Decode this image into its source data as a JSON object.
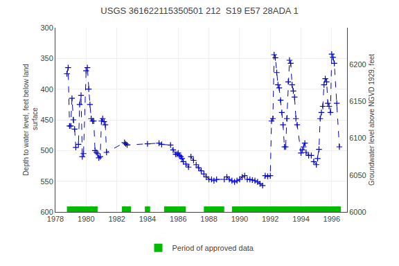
{
  "chart_data": {
    "type": "line",
    "title": "USGS 361622115350501 212  S19 E57 28ADA 1",
    "ylabel": "Depth to water level, feet below land\n surface",
    "y2label": "Groundwater level above NGVD 1929, feet",
    "x": [
      1978.75,
      1978.83,
      1978.92,
      1979.0,
      1979.08,
      1979.17,
      1979.25,
      1979.33,
      1979.5,
      1979.58,
      1979.67,
      1979.75,
      1979.83,
      1980.0,
      1980.08,
      1980.17,
      1980.25,
      1980.33,
      1980.42,
      1980.5,
      1980.58,
      1980.67,
      1980.75,
      1980.83,
      1980.92,
      1981.0,
      1981.08,
      1981.17,
      1981.25,
      1981.33,
      1982.5,
      1982.58,
      1982.67,
      1984.0,
      1984.75,
      1984.92,
      1985.5,
      1985.67,
      1985.83,
      1985.92,
      1986.0,
      1986.08,
      1986.17,
      1986.25,
      1986.33,
      1986.5,
      1986.67,
      1986.83,
      1987.0,
      1987.17,
      1987.33,
      1987.5,
      1987.67,
      1987.83,
      1988.0,
      1988.17,
      1988.33,
      1988.5,
      1989.0,
      1989.17,
      1989.33,
      1989.5,
      1989.67,
      1989.83,
      1990.0,
      1990.17,
      1990.33,
      1990.5,
      1990.67,
      1990.83,
      1991.0,
      1991.17,
      1991.33,
      1991.5,
      1991.67,
      1991.83,
      1992.0,
      1992.08,
      1992.17,
      1992.25,
      1992.33,
      1992.42,
      1992.5,
      1992.58,
      1992.67,
      1992.75,
      1992.83,
      1992.92,
      1993.0,
      1993.08,
      1993.17,
      1993.25,
      1993.33,
      1993.42,
      1993.5,
      1993.58,
      1993.67,
      1993.75,
      1994.0,
      1994.08,
      1994.17,
      1994.25,
      1994.33,
      1994.5,
      1994.67,
      1994.83,
      1995.0,
      1995.08,
      1995.17,
      1995.25,
      1995.33,
      1995.42,
      1995.5,
      1995.58,
      1995.67,
      1995.75,
      1995.83,
      1995.92,
      1996.0,
      1996.08,
      1996.17,
      1996.33,
      1996.5
    ],
    "series": [
      {
        "type": "line",
        "color": "#0000cc",
        "line_style": "dashed",
        "marker": "plus",
        "values": [
          375,
          365,
          460,
          460,
          415,
          450,
          465,
          495,
          490,
          425,
          410,
          510,
          505,
          370,
          365,
          400,
          425,
          448,
          452,
          452,
          500,
          503,
          505,
          512,
          510,
          452,
          448,
          453,
          458,
          503,
          487,
          489,
          491,
          489,
          488,
          490,
          491,
          499,
          506,
          506,
          504,
          508,
          510,
          513,
          518,
          522,
          527,
          510,
          516,
          523,
          528,
          533,
          538,
          543,
          547,
          547,
          549,
          547,
          547,
          543,
          547,
          549,
          551,
          549,
          547,
          543,
          541,
          547,
          547,
          548,
          549,
          551,
          554,
          557,
          541,
          542,
          541,
          452,
          448,
          344,
          349,
          373,
          393,
          398,
          418,
          438,
          458,
          494,
          494,
          448,
          388,
          353,
          358,
          393,
          403,
          413,
          448,
          458,
          504,
          499,
          494,
          488,
          503,
          508,
          508,
          518,
          523,
          513,
          498,
          448,
          438,
          428,
          393,
          383,
          388,
          423,
          428,
          438,
          343,
          348,
          358,
          423,
          494
        ]
      },
      {
        "type": "band",
        "name": "Period of approved data",
        "color": "#00bb00",
        "segments": [
          [
            1978.75,
            1980.75
          ],
          [
            1982.33,
            1982.92
          ],
          [
            1983.83,
            1984.17
          ],
          [
            1985.08,
            1986.5
          ],
          [
            1987.67,
            1989.0
          ],
          [
            1989.5,
            1996.6
          ]
        ]
      }
    ],
    "xlim": [
      1978,
      1997
    ],
    "xticks": [
      1978,
      1980,
      1982,
      1984,
      1986,
      1988,
      1990,
      1992,
      1994,
      1996
    ],
    "ylim": [
      600,
      300
    ],
    "yticks": [
      300,
      350,
      400,
      450,
      500,
      550,
      600
    ],
    "y2lim": [
      6000,
      6250
    ],
    "y2ticks": [
      6000,
      6050,
      6100,
      6150,
      6200
    ],
    "grid": true,
    "legend": "bottom"
  }
}
